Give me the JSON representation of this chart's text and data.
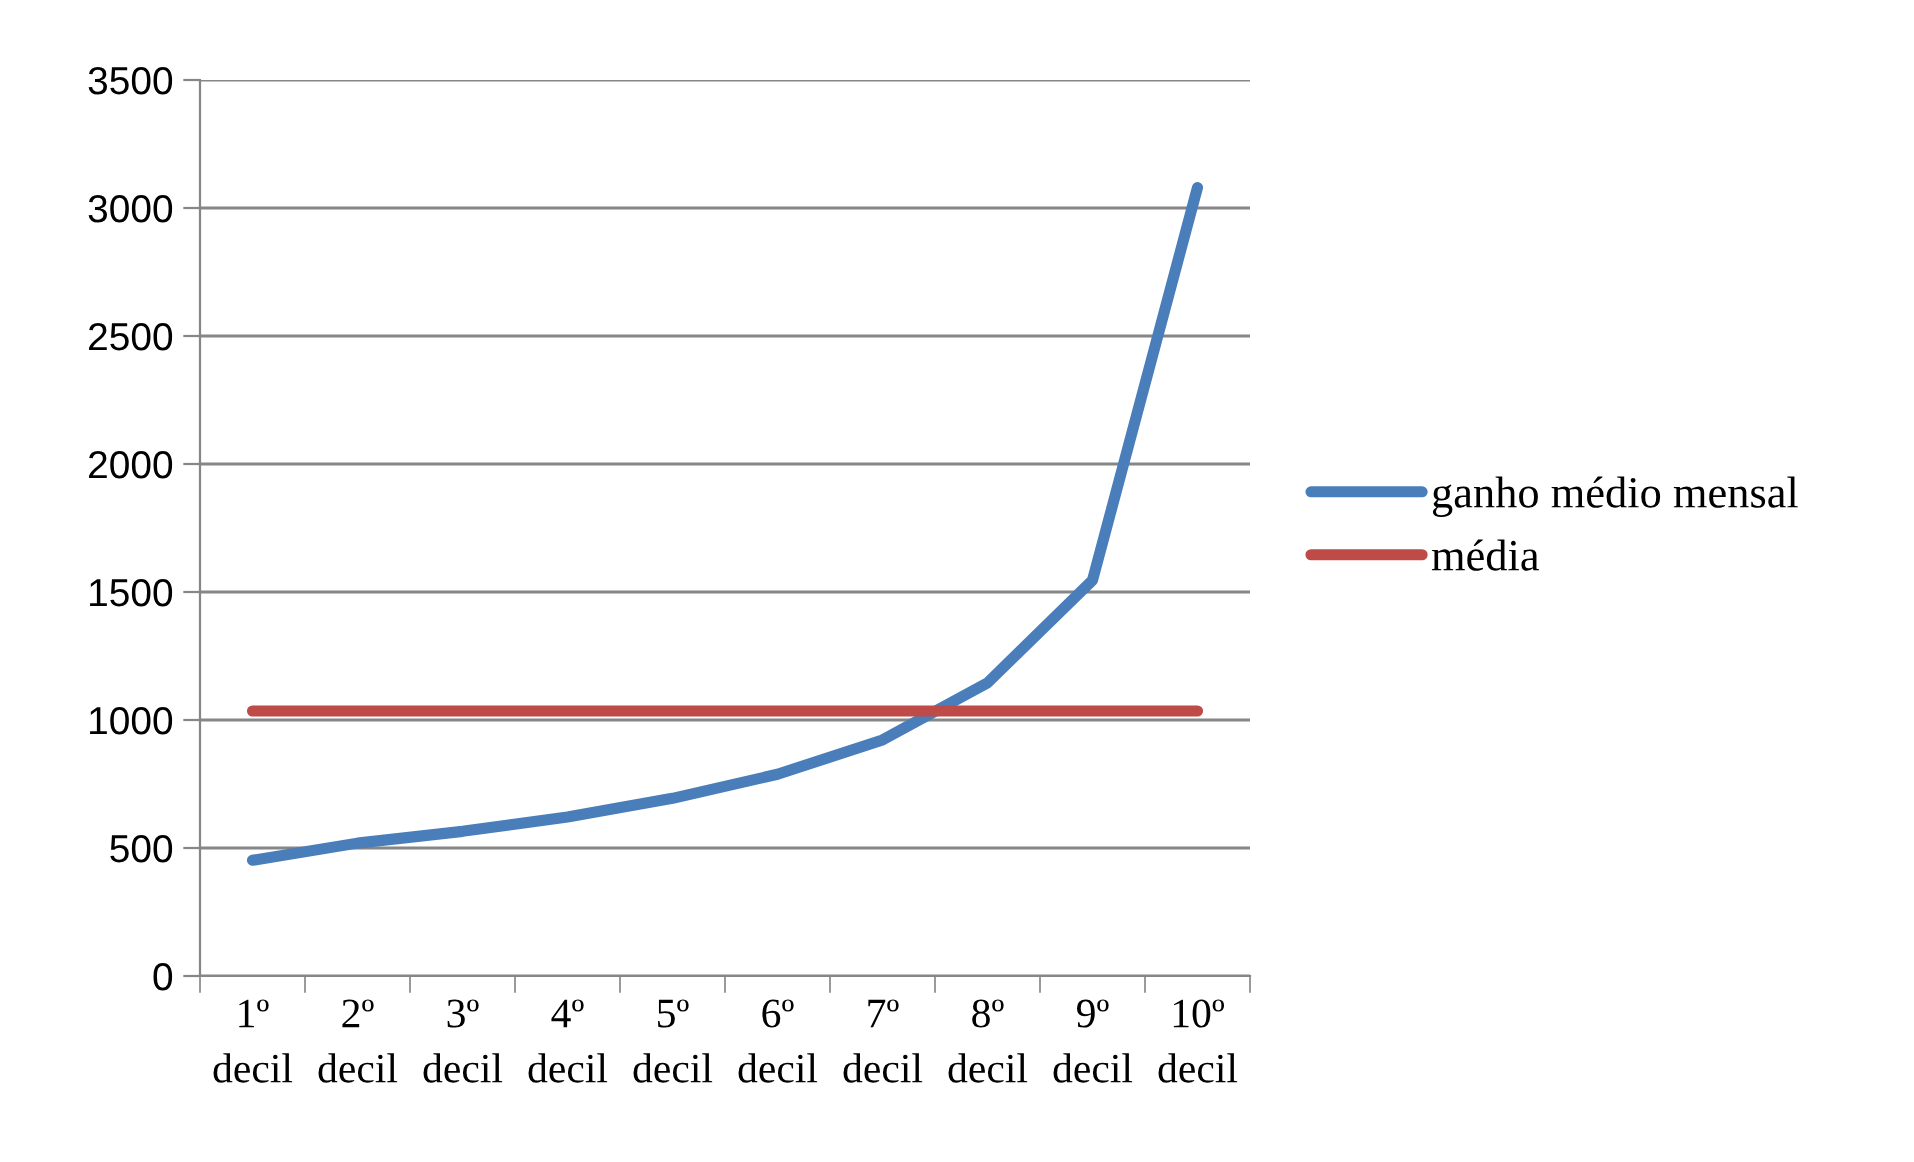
{
  "chart_data": {
    "type": "line",
    "categories": [
      "1º decil",
      "2º decil",
      "3º decil",
      "4º decil",
      "5º decil",
      "6º decil",
      "7º decil",
      "8º decil",
      "9º decil",
      "10º decil"
    ],
    "series": [
      {
        "name": "ganho médio mensal",
        "color": "#4a7ebb",
        "values": [
          452,
          519,
          565,
          621,
          694,
          788,
          922,
          1145,
          1546,
          3080
        ]
      },
      {
        "name": "média",
        "color": "#be4b48",
        "values": [
          1035,
          1035,
          1035,
          1035,
          1035,
          1035,
          1035,
          1035,
          1035,
          1035
        ]
      }
    ],
    "ylim": [
      0,
      3500
    ],
    "yticks": [
      0,
      500,
      1000,
      1500,
      2000,
      2500,
      3000,
      3500
    ],
    "grid": "y",
    "legend": "right",
    "marker": "none",
    "line_style": "solid"
  }
}
